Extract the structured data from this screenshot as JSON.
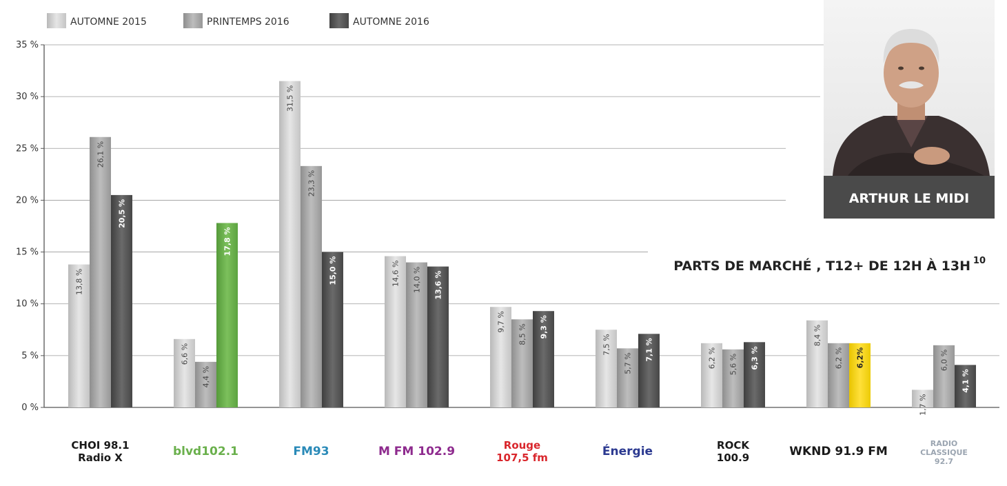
{
  "colors": {
    "light": "#d2d2d2",
    "mid": "#a8a8a8",
    "dark": "#585858",
    "green": "#6ab04c",
    "yellow": "#f5d20f",
    "panel": "#4a4a4a"
  },
  "photo_panel": {
    "name": "ARTHUR LE MIDI"
  },
  "chart_data": {
    "type": "bar",
    "title": "PARTS DE MARCHÉ , T12+ DE 12H À 13H",
    "title_superscript": "10",
    "ylim": [
      0,
      35
    ],
    "yticks": [
      0,
      5,
      10,
      15,
      20,
      25,
      30,
      35
    ],
    "ytick_labels": [
      "0 %",
      "5 %",
      "10 %",
      "15 %",
      "20 %",
      "25 %",
      "30 %",
      "35 %"
    ],
    "grid": true,
    "legend_position": "top-left",
    "categories": [
      "CHOI 98.1 Radio X",
      "blvd 102.1",
      "FM93",
      "M 102.9",
      "Rouge 107.5 fm",
      "Énergie",
      "Rock 100.9",
      "WKND 91.9 FM",
      "Radio Classique 92.7"
    ],
    "category_logos": [
      {
        "lines": [
          "CHOI 98.1",
          "Radio X"
        ],
        "color": "#1a1a1a"
      },
      {
        "lines": [
          "blvd102.1"
        ],
        "color": "#6ab04c"
      },
      {
        "lines": [
          "FM93"
        ],
        "color": "#2a8ab8"
      },
      {
        "lines": [
          "M FM 102.9"
        ],
        "color": "#8e2b8e"
      },
      {
        "lines": [
          "Rouge",
          "107,5 fm"
        ],
        "color": "#d9262c"
      },
      {
        "lines": [
          "Énergie"
        ],
        "color": "#2b3990"
      },
      {
        "lines": [
          "ROCK",
          "100.9"
        ],
        "color": "#1a1a1a"
      },
      {
        "lines": [
          "WKND 91.9 FM"
        ],
        "color": "#1a1a1a"
      },
      {
        "lines": [
          "RADIO",
          "CLASSIQUE",
          "92.7"
        ],
        "color": "#9aa4b0"
      }
    ],
    "series": [
      {
        "name": "AUTOMNE 2015",
        "color_key": "light",
        "values": [
          13.8,
          6.6,
          31.5,
          14.6,
          9.7,
          7.5,
          6.2,
          8.4,
          1.7
        ],
        "labels": [
          "13,8 %",
          "6,6 %",
          "31,5 %",
          "14,6 %",
          "9,7 %",
          "7,5 %",
          "6,2 %",
          "8,4 %",
          "1,7 %"
        ]
      },
      {
        "name": "PRINTEMPS 2016",
        "color_key": "mid",
        "values": [
          26.1,
          4.4,
          23.3,
          14.0,
          8.5,
          5.7,
          5.6,
          6.2,
          6.0
        ],
        "labels": [
          "26,1 %",
          "4,4 %",
          "23,3 %",
          "14,0 %",
          "8,5 %",
          "5,7 %",
          "5,6 %",
          "6,2 %",
          "6,0 %"
        ]
      },
      {
        "name": "AUTOMNE 2016",
        "color_key": "dark",
        "values": [
          20.5,
          17.8,
          15.0,
          13.6,
          9.3,
          7.1,
          6.3,
          6.2,
          4.1
        ],
        "labels": [
          "20,5 %",
          "17,8 %",
          "15,0 %",
          "13,6 %",
          "9,3 %",
          "7,1 %",
          "6,3 %",
          "6,2%",
          "4,1 %"
        ],
        "highlight_colors": [
          null,
          "green",
          null,
          null,
          null,
          null,
          null,
          "yellow",
          null
        ]
      }
    ]
  }
}
